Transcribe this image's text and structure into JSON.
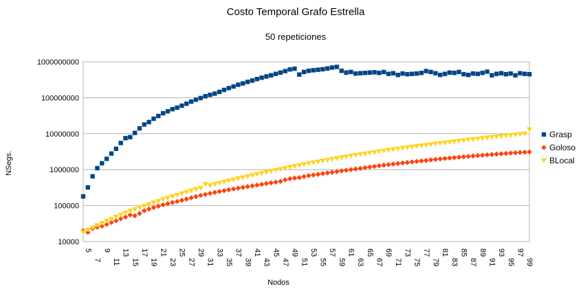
{
  "chart_data": {
    "type": "scatter",
    "title": "Costo Temporal Grafo Estrella",
    "subtitle": "50 repeticiones",
    "xlabel": "Nodos",
    "ylabel": "NSegs.",
    "yscale": "log",
    "ylim": [
      10000,
      1000000000
    ],
    "xlim": [
      5,
      100
    ],
    "grid": "horizontal",
    "legend_position": "right",
    "y_ticks": [
      "10000",
      "100000",
      "1000000",
      "10000000",
      "100000000",
      "1000000000"
    ],
    "x_ticks": [
      "5",
      "7",
      "9",
      "11",
      "13",
      "15",
      "17",
      "19",
      "21",
      "23",
      "25",
      "27",
      "29",
      "31",
      "33",
      "35",
      "37",
      "39",
      "41",
      "43",
      "45",
      "47",
      "49",
      "51",
      "53",
      "55",
      "57",
      "59",
      "61",
      "63",
      "65",
      "67",
      "69",
      "71",
      "73",
      "75",
      "77",
      "79",
      "81",
      "83",
      "85",
      "87",
      "89",
      "91",
      "93",
      "95",
      "97",
      "99"
    ],
    "x": [
      5,
      6,
      7,
      8,
      9,
      10,
      11,
      12,
      13,
      14,
      15,
      16,
      17,
      18,
      19,
      20,
      21,
      22,
      23,
      24,
      25,
      26,
      27,
      28,
      29,
      30,
      31,
      32,
      33,
      34,
      35,
      36,
      37,
      38,
      39,
      40,
      41,
      42,
      43,
      44,
      45,
      46,
      47,
      48,
      49,
      50,
      51,
      52,
      53,
      54,
      55,
      56,
      57,
      58,
      59,
      60,
      61,
      62,
      63,
      64,
      65,
      66,
      67,
      68,
      69,
      70,
      71,
      72,
      73,
      74,
      75,
      76,
      77,
      78,
      79,
      80,
      81,
      82,
      83,
      84,
      85,
      86,
      87,
      88,
      89,
      90,
      91,
      92,
      93,
      94,
      95,
      96,
      97,
      98,
      99,
      100
    ],
    "series": [
      {
        "name": "Grasp",
        "color": "#004586",
        "marker": "square",
        "values": [
          180000,
          320000,
          650000,
          1100000,
          1500000,
          2000000,
          2800000,
          3800000,
          5500000,
          7500000,
          8000000,
          10500000,
          14000000,
          18000000,
          21000000,
          26000000,
          31000000,
          37000000,
          42000000,
          48000000,
          53000000,
          60000000,
          68000000,
          78000000,
          88000000,
          98000000,
          110000000,
          120000000,
          130000000,
          145000000,
          165000000,
          185000000,
          205000000,
          230000000,
          250000000,
          275000000,
          300000000,
          330000000,
          360000000,
          390000000,
          420000000,
          460000000,
          500000000,
          550000000,
          610000000,
          640000000,
          440000000,
          520000000,
          560000000,
          580000000,
          600000000,
          620000000,
          650000000,
          690000000,
          720000000,
          560000000,
          500000000,
          520000000,
          470000000,
          480000000,
          490000000,
          500000000,
          510000000,
          490000000,
          520000000,
          460000000,
          480000000,
          430000000,
          470000000,
          450000000,
          460000000,
          470000000,
          490000000,
          550000000,
          520000000,
          480000000,
          430000000,
          460000000,
          500000000,
          490000000,
          520000000,
          450000000,
          430000000,
          470000000,
          460000000,
          490000000,
          530000000,
          420000000,
          460000000,
          480000000,
          450000000,
          470000000,
          420000000,
          480000000,
          460000000,
          450000000
        ]
      },
      {
        "name": "Goloso",
        "color": "#ff420e",
        "marker": "diamond",
        "values": [
          20000,
          18000,
          23000,
          25000,
          27000,
          30000,
          34000,
          38000,
          43000,
          48000,
          55000,
          52000,
          60000,
          72000,
          80000,
          88000,
          96000,
          105000,
          113000,
          122000,
          130000,
          140000,
          152000,
          165000,
          178000,
          192000,
          205000,
          218000,
          232000,
          246000,
          260000,
          275000,
          290000,
          305000,
          320000,
          337000,
          354000,
          372000,
          390000,
          410000,
          430000,
          450000,
          470000,
          520000,
          555000,
          580000,
          600000,
          640000,
          680000,
          710000,
          740000,
          775000,
          810000,
          845000,
          880000,
          920000,
          960000,
          1000000,
          1040000,
          1080000,
          1130000,
          1180000,
          1230000,
          1280000,
          1330000,
          1380000,
          1430000,
          1480000,
          1530000,
          1580000,
          1640000,
          1690000,
          1740000,
          1800000,
          1860000,
          1920000,
          1980000,
          2040000,
          2100000,
          2160000,
          2220000,
          2280000,
          2340000,
          2400000,
          2460000,
          2520000,
          2580000,
          2640000,
          2700000,
          2760000,
          2820000,
          2880000,
          2940000,
          3000000,
          3050000,
          3100000
        ]
      },
      {
        "name": "BLocal",
        "color": "#ffd320",
        "marker": "triangle-down",
        "values": [
          18000,
          21000,
          24000,
          28000,
          32000,
          37000,
          42000,
          48000,
          55000,
          62000,
          70000,
          78000,
          87000,
          97000,
          108000,
          120000,
          132000,
          146000,
          161000,
          177000,
          195000,
          214000,
          235000,
          257000,
          280000,
          305000,
          390000,
          360000,
          390000,
          420000,
          450000,
          485000,
          520000,
          560000,
          600000,
          640000,
          690000,
          740000,
          790000,
          840000,
          900000,
          960000,
          1020000,
          1090000,
          1160000,
          1230000,
          1310000,
          1390000,
          1470000,
          1560000,
          1650000,
          1740000,
          1840000,
          1940000,
          2040000,
          2150000,
          2260000,
          2380000,
          2500000,
          2620000,
          2750000,
          2880000,
          3020000,
          3160000,
          3300000,
          3450000,
          3600000,
          3760000,
          3920000,
          4080000,
          4250000,
          4420000,
          4600000,
          4780000,
          4970000,
          5160000,
          5360000,
          5560000,
          5770000,
          5980000,
          6200000,
          6430000,
          6660000,
          6900000,
          7140000,
          7390000,
          7640000,
          7900000,
          8170000,
          8440000,
          8720000,
          9000000,
          9300000,
          9600000,
          9900000,
          13000000
        ]
      }
    ]
  }
}
